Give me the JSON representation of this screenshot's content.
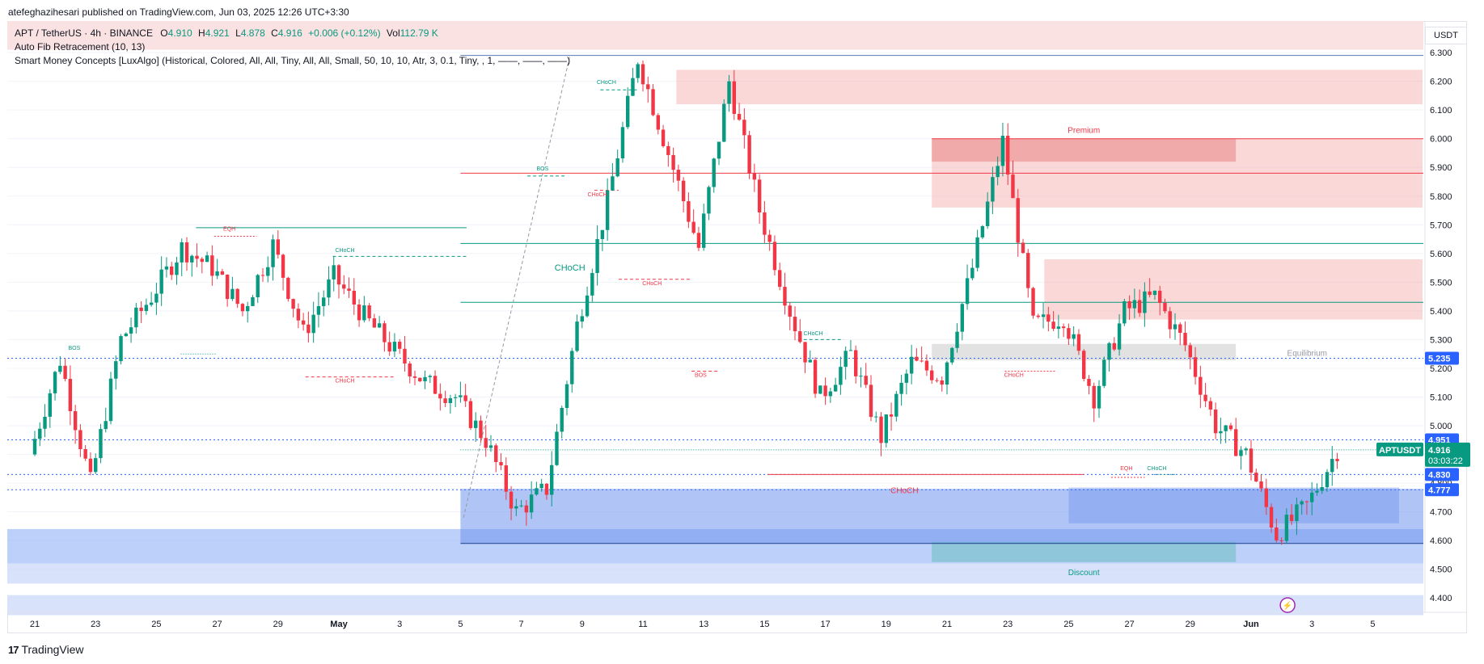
{
  "header": {
    "publisher": "atefeghazihesari published on TradingView.com, Jun 03, 2025 12:26 UTC+3:30"
  },
  "legend": {
    "symbol": "APT / TetherUS · 4h · BINANCE",
    "open_label": "O",
    "open": "4.910",
    "high_label": "H",
    "high": "4.921",
    "low_label": "L",
    "low": "4.878",
    "close_label": "C",
    "close": "4.916",
    "change": "+0.006 (+0.12%)",
    "vol_label": "Vol",
    "vol": "112.79 K",
    "indicator1": "Auto Fib Retracement (10, 13)",
    "indicator2": "Smart Money Concepts [LuxAlgo] (Historical, Colored, All, All, Tiny, All, All, Small, 50, 10, 10, Atr, 3, 0.1, Tiny, , 1, ——, ——, ——)"
  },
  "currency": "USDT",
  "footer": {
    "brand": "TradingView"
  },
  "colors": {
    "up": "#089981",
    "down": "#f23645",
    "blue": "#2962ff",
    "premium": "#f7a9a9",
    "discount": "#8fb1f5"
  },
  "chart_data": {
    "type": "candlestick",
    "title": "APT / TetherUS · 4h · BINANCE",
    "ylim": [
      4.35,
      6.41
    ],
    "y_ticks": [
      "6.300",
      "6.200",
      "6.100",
      "6.000",
      "5.900",
      "5.800",
      "5.700",
      "5.600",
      "5.500",
      "5.400",
      "5.300",
      "5.200",
      "5.100",
      "5.000",
      "4.900",
      "4.800",
      "4.700",
      "4.600",
      "4.500",
      "4.400"
    ],
    "x_ticks": [
      "21",
      "23",
      "25",
      "27",
      "29",
      "May",
      "3",
      "5",
      "7",
      "9",
      "11",
      "13",
      "15",
      "17",
      "19",
      "21",
      "23",
      "25",
      "27",
      "29",
      "Jun",
      "3",
      "5"
    ],
    "price_labels": [
      {
        "text": "5.235",
        "value": 5.235,
        "color": "#2962ff"
      },
      {
        "text": "4.951",
        "value": 4.951,
        "color": "#2962ff"
      },
      {
        "text": "4.830",
        "value": 4.83,
        "color": "#2962ff"
      },
      {
        "text": "4.777",
        "value": 4.777,
        "color": "#2962ff"
      }
    ],
    "last_price": {
      "symbol": "APTUSDT",
      "value": 4.916,
      "text": "4.916",
      "countdown": "03:03:22",
      "color": "#089981"
    },
    "key_points": [
      {
        "date": "Apr 21",
        "price": 4.9
      },
      {
        "date": "Apr 22",
        "price": 5.23
      },
      {
        "date": "Apr 23",
        "price": 4.8
      },
      {
        "date": "Apr 24",
        "price": 5.3
      },
      {
        "date": "Apr 25",
        "price": 5.45
      },
      {
        "date": "Apr 26",
        "price": 5.62
      },
      {
        "date": "Apr 27",
        "price": 5.55
      },
      {
        "date": "Apr 28",
        "price": 5.4
      },
      {
        "date": "Apr 29",
        "price": 5.63
      },
      {
        "date": "Apr 30",
        "price": 5.32
      },
      {
        "date": "May 1",
        "price": 5.52
      },
      {
        "date": "May 2",
        "price": 5.38
      },
      {
        "date": "May 3",
        "price": 5.26
      },
      {
        "date": "May 4",
        "price": 5.15
      },
      {
        "date": "May 5",
        "price": 5.1
      },
      {
        "date": "May 6",
        "price": 4.95
      },
      {
        "date": "May 7",
        "price": 4.7
      },
      {
        "date": "May 8",
        "price": 4.78
      },
      {
        "date": "May 9",
        "price": 5.35
      },
      {
        "date": "May 10",
        "price": 5.78
      },
      {
        "date": "May 11",
        "price": 6.28
      },
      {
        "date": "May 12",
        "price": 5.95
      },
      {
        "date": "May 13",
        "price": 5.62
      },
      {
        "date": "May 14",
        "price": 6.2
      },
      {
        "date": "May 15",
        "price": 5.75
      },
      {
        "date": "May 16",
        "price": 5.4
      },
      {
        "date": "May 17",
        "price": 5.1
      },
      {
        "date": "May 18",
        "price": 5.25
      },
      {
        "date": "May 19",
        "price": 4.96
      },
      {
        "date": "May 20",
        "price": 5.22
      },
      {
        "date": "May 21",
        "price": 5.17
      },
      {
        "date": "May 22",
        "price": 5.55
      },
      {
        "date": "May 23",
        "price": 5.99
      },
      {
        "date": "May 24",
        "price": 5.35
      },
      {
        "date": "May 25",
        "price": 5.38
      },
      {
        "date": "May 26",
        "price": 5.1
      },
      {
        "date": "May 27",
        "price": 5.4
      },
      {
        "date": "May 28",
        "price": 5.45
      },
      {
        "date": "May 29",
        "price": 5.28
      },
      {
        "date": "May 30",
        "price": 5.0
      },
      {
        "date": "May 31",
        "price": 4.9
      },
      {
        "date": "Jun 1",
        "price": 4.62
      },
      {
        "date": "Jun 2",
        "price": 4.72
      },
      {
        "date": "Jun 3",
        "price": 4.916
      }
    ],
    "zones": [
      {
        "name": "Premium",
        "top": 6.0,
        "bottom": 5.76,
        "color": "#f23645"
      },
      {
        "name": "Equilibrium",
        "top": 5.285,
        "bottom": 5.228,
        "color": "#9e9e9e"
      },
      {
        "name": "Discount",
        "top": 4.595,
        "bottom": 4.525,
        "color": "#089981"
      }
    ],
    "annotations": [
      {
        "text": "CHoCH",
        "color": "#089981"
      },
      {
        "text": "CHoCH",
        "color": "#089981"
      },
      {
        "text": "CHoCH",
        "color": "#089981"
      },
      {
        "text": "CHoCH",
        "color": "#089981"
      },
      {
        "text": "CHoCH",
        "color": "#089981"
      },
      {
        "text": "CHoCH",
        "color": "#f23645"
      },
      {
        "text": "CHoCH",
        "color": "#f23645"
      },
      {
        "text": "CHoCH",
        "color": "#f23645"
      },
      {
        "text": "CHoCH",
        "color": "#f23645"
      },
      {
        "text": "CHoCH",
        "color": "#f23645"
      },
      {
        "text": "BOS",
        "color": "#089981"
      },
      {
        "text": "BOS",
        "color": "#089981"
      },
      {
        "text": "BOS",
        "color": "#f23645"
      },
      {
        "text": "EQH",
        "color": "#f23645"
      },
      {
        "text": "EQH",
        "color": "#f23645"
      }
    ]
  }
}
